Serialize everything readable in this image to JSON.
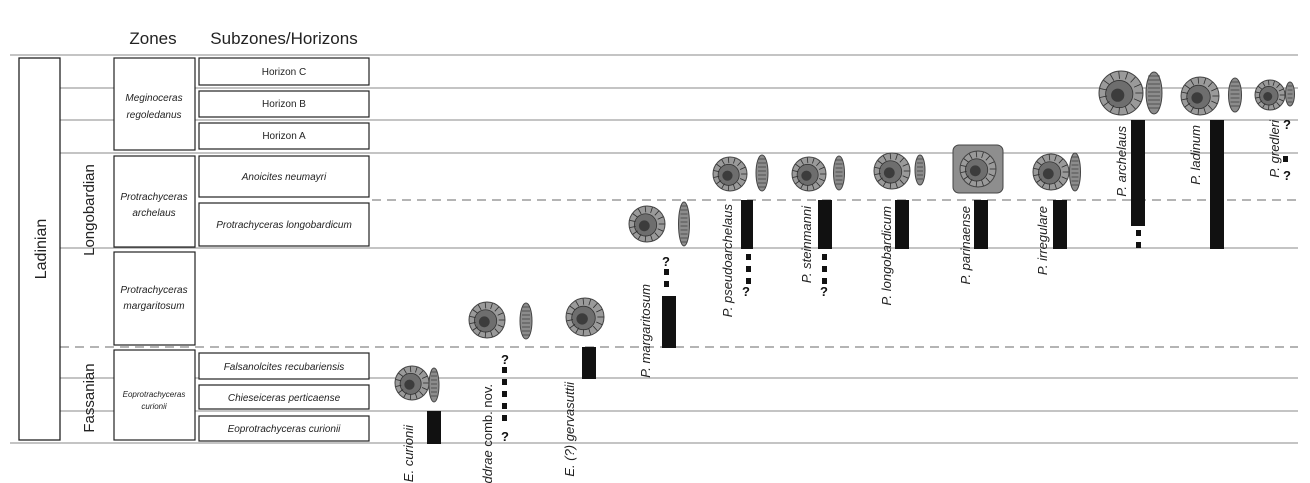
{
  "headers": {
    "zones": "Zones",
    "subzones": "Subzones/Horizons"
  },
  "stage": "Ladinian",
  "substages": [
    "Longobardian",
    "Fassanian"
  ],
  "zones": [
    {
      "line1": "Meginoceras",
      "line2": "regoledanus"
    },
    {
      "line1": "Protrachyceras",
      "line2": "archelaus"
    },
    {
      "line1": "Protrachyceras",
      "line2": "margaritosum"
    },
    {
      "line1": "Eoprotrachyceras",
      "line2": "curionii"
    }
  ],
  "subzones": [
    "Horizon C",
    "Horizon B",
    "Horizon A",
    "Anoicites neumayri",
    "Protrachyceras longobardicum",
    "Falsanolcites recubariensis",
    "Chieseiceras perticaense",
    "Eoprotrachyceras curionii"
  ],
  "taxa": [
    {
      "name": "E. curionii",
      "italic": "E. curionii",
      "plain": ""
    },
    {
      "name": "E. ddrae comb. nov.",
      "italic": "E. ddrae",
      "plain": " comb. nov."
    },
    {
      "name": "E. (?) gervasuttii",
      "italic": "E. (?) gervasuttii",
      "plain": ""
    },
    {
      "name": "P. margaritosum",
      "italic": "P. margaritosum",
      "plain": ""
    },
    {
      "name": "P. pseudoarchelaus",
      "italic": "P. pseudoarchelaus",
      "plain": ""
    },
    {
      "name": "P. steinmanni",
      "italic": "P. steinmanni",
      "plain": ""
    },
    {
      "name": "P. longobardicum",
      "italic": "P. longobardicum",
      "plain": ""
    },
    {
      "name": "P. parinaense",
      "italic": "P. parinaense",
      "plain": ""
    },
    {
      "name": "P. irregulare",
      "italic": "P. irregulare",
      "plain": ""
    },
    {
      "name": "P. archelaus",
      "italic": "P. archelaus",
      "plain": ""
    },
    {
      "name": "P. ladinum",
      "italic": "P. ladinum",
      "plain": ""
    },
    {
      "name": "P. gredleri",
      "italic": "P. gredleri",
      "plain": ""
    }
  ],
  "uncertainty_mark": "?",
  "colors": {
    "range_bar": "#111111",
    "grid_line": "#888888",
    "box_stroke": "#222222",
    "fossil": "#5a5a5a"
  }
}
